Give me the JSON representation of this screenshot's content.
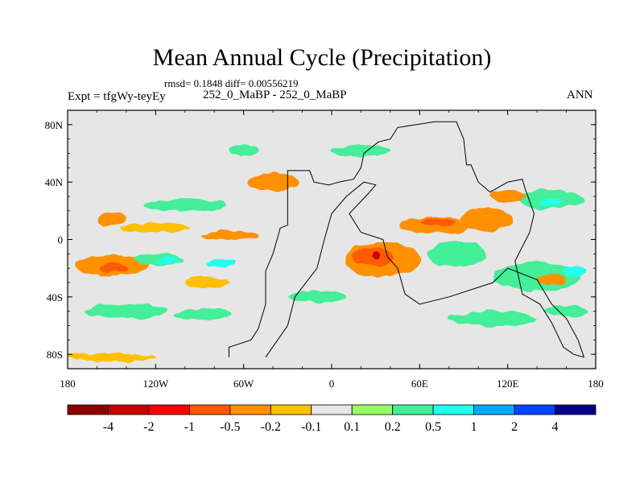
{
  "header": {
    "title": "Mean Annual Cycle (Precipitation)",
    "stats": "rmsd= 0.1848 diff= 0.00556219",
    "expt": "Expt = tfgWy-teyEy",
    "case": "252_0_MaBP - 252_0_MaBP",
    "season": "ANN"
  },
  "chart_data": {
    "type": "heatmap",
    "title": "Mean Annual Cycle (Precipitation)",
    "xlabel": "",
    "ylabel": "",
    "xlim": [
      -180,
      180
    ],
    "ylim": [
      -90,
      90
    ],
    "x_ticks": [
      {
        "value": -180,
        "label": "180"
      },
      {
        "value": -120,
        "label": "120W"
      },
      {
        "value": -60,
        "label": "60W"
      },
      {
        "value": 0,
        "label": "0"
      },
      {
        "value": 60,
        "label": "60E"
      },
      {
        "value": 120,
        "label": "120E"
      },
      {
        "value": 180,
        "label": "180"
      }
    ],
    "y_ticks": [
      {
        "value": 80,
        "label": "80N"
      },
      {
        "value": 40,
        "label": "40N"
      },
      {
        "value": 0,
        "label": "0"
      },
      {
        "value": -40,
        "label": "40S"
      },
      {
        "value": -80,
        "label": "80S"
      }
    ],
    "colorbar": {
      "colors": [
        "#8b0000",
        "#c40000",
        "#ff0000",
        "#ff5a00",
        "#ff9000",
        "#ffc000",
        "#e6e6e6",
        "#99ff66",
        "#44ee99",
        "#22ffee",
        "#00aaff",
        "#0044ff",
        "#000088"
      ],
      "levels": [
        "-4",
        "-2",
        "-1",
        "-0.5",
        "-0.2",
        "-0.1",
        "0.1",
        "0.2",
        "0.5",
        "1",
        "2",
        "4"
      ]
    },
    "blobs": [
      {
        "lon": -150,
        "lat": 14,
        "rlon": 10,
        "rlat": 5,
        "level": "-0.2"
      },
      {
        "lon": -120,
        "lat": 8,
        "rlon": 24,
        "rlat": 3,
        "level": "-0.1"
      },
      {
        "lon": -150,
        "lat": -18,
        "rlon": 25,
        "rlat": 7,
        "level": "-0.2"
      },
      {
        "lon": -148,
        "lat": -20,
        "rlon": 10,
        "rlat": 3,
        "level": "-0.5"
      },
      {
        "lon": -118,
        "lat": -14,
        "rlon": 18,
        "rlat": 4,
        "level": "0.2"
      },
      {
        "lon": -112,
        "lat": -15,
        "rlon": 9,
        "rlat": 2,
        "level": "0.5"
      },
      {
        "lon": -100,
        "lat": 24,
        "rlon": 28,
        "rlat": 4,
        "level": "0.2"
      },
      {
        "lon": -140,
        "lat": -50,
        "rlon": 28,
        "rlat": 5,
        "level": "0.2"
      },
      {
        "lon": -88,
        "lat": -52,
        "rlon": 20,
        "rlat": 4,
        "level": "0.2"
      },
      {
        "lon": -85,
        "lat": -30,
        "rlon": 15,
        "rlat": 4,
        "level": "-0.1"
      },
      {
        "lon": -75,
        "lat": -16,
        "rlon": 10,
        "rlat": 3,
        "level": "0.5"
      },
      {
        "lon": -40,
        "lat": 40,
        "rlon": 18,
        "rlat": 6,
        "level": "-0.2"
      },
      {
        "lon": -60,
        "lat": 62,
        "rlon": 10,
        "rlat": 4,
        "level": "0.2"
      },
      {
        "lon": -70,
        "lat": 3,
        "rlon": 20,
        "rlat": 3,
        "level": "-0.2"
      },
      {
        "lon": 35,
        "lat": -14,
        "rlon": 26,
        "rlat": 12,
        "level": "-0.2"
      },
      {
        "lon": 28,
        "lat": -12,
        "rlon": 14,
        "rlat": 6,
        "level": "-0.5"
      },
      {
        "lon": 30,
        "lat": -11,
        "rlon": 3,
        "rlat": 2,
        "level": "-2"
      },
      {
        "lon": 70,
        "lat": 10,
        "rlon": 24,
        "rlat": 6,
        "level": "-0.2"
      },
      {
        "lon": 72,
        "lat": 12,
        "rlon": 12,
        "rlat": 3,
        "level": "-0.5"
      },
      {
        "lon": 85,
        "lat": -10,
        "rlon": 20,
        "rlat": 9,
        "level": "0.2"
      },
      {
        "lon": 105,
        "lat": 14,
        "rlon": 18,
        "rlat": 8,
        "level": "-0.2"
      },
      {
        "lon": 150,
        "lat": 28,
        "rlon": 22,
        "rlat": 7,
        "level": "0.2"
      },
      {
        "lon": 150,
        "lat": 26,
        "rlon": 8,
        "rlat": 3,
        "level": "0.5"
      },
      {
        "lon": 140,
        "lat": -26,
        "rlon": 30,
        "rlat": 10,
        "level": "0.2"
      },
      {
        "lon": 150,
        "lat": -28,
        "rlon": 10,
        "rlat": 4,
        "level": "-0.2"
      },
      {
        "lon": 165,
        "lat": -22,
        "rlon": 8,
        "rlat": 3,
        "level": "0.5"
      },
      {
        "lon": 110,
        "lat": -55,
        "rlon": 30,
        "rlat": 5,
        "level": "0.2"
      },
      {
        "lon": 160,
        "lat": -50,
        "rlon": 15,
        "rlat": 4,
        "level": "0.2"
      },
      {
        "lon": -150,
        "lat": -82,
        "rlon": 30,
        "rlat": 3,
        "level": "-0.1"
      },
      {
        "lon": 20,
        "lat": 62,
        "rlon": 20,
        "rlat": 4,
        "level": "0.2"
      },
      {
        "lon": 120,
        "lat": 30,
        "rlon": 12,
        "rlat": 4,
        "level": "-0.2"
      },
      {
        "lon": -10,
        "lat": -40,
        "rlon": 20,
        "rlat": 4,
        "level": "0.2"
      }
    ],
    "outline": [
      [
        -70,
        -82
      ],
      [
        -70,
        -75
      ],
      [
        -55,
        -70
      ],
      [
        -50,
        -62
      ],
      [
        -45,
        -45
      ],
      [
        -45,
        -22
      ],
      [
        -40,
        -10
      ],
      [
        -35,
        8
      ],
      [
        -30,
        10
      ],
      [
        -30,
        48
      ],
      [
        -15,
        48
      ],
      [
        -12,
        40
      ],
      [
        -2,
        38
      ],
      [
        5,
        40
      ],
      [
        15,
        42
      ],
      [
        20,
        50
      ],
      [
        22,
        60
      ],
      [
        32,
        68
      ],
      [
        40,
        70
      ],
      [
        45,
        78
      ],
      [
        70,
        82
      ],
      [
        85,
        82
      ],
      [
        90,
        70
      ],
      [
        92,
        52
      ],
      [
        95,
        52
      ],
      [
        100,
        40
      ],
      [
        108,
        33
      ],
      [
        120,
        40
      ],
      [
        130,
        42
      ],
      [
        132,
        35
      ],
      [
        138,
        18
      ],
      [
        135,
        5
      ],
      [
        130,
        -5
      ],
      [
        125,
        -15
      ],
      [
        130,
        -38
      ],
      [
        142,
        -45
      ],
      [
        150,
        -58
      ],
      [
        158,
        -75
      ],
      [
        165,
        -80
      ],
      [
        172,
        -82
      ],
      [
        168,
        -70
      ],
      [
        160,
        -55
      ],
      [
        150,
        -45
      ],
      [
        140,
        -28
      ],
      [
        120,
        -20
      ],
      [
        110,
        -30
      ],
      [
        80,
        -40
      ],
      [
        60,
        -45
      ],
      [
        50,
        -38
      ],
      [
        45,
        -20
      ],
      [
        38,
        -12
      ],
      [
        35,
        0
      ],
      [
        20,
        5
      ],
      [
        12,
        18
      ],
      [
        25,
        32
      ],
      [
        30,
        38
      ],
      [
        22,
        40
      ],
      [
        10,
        30
      ],
      [
        0,
        18
      ],
      [
        -5,
        0
      ],
      [
        -10,
        -20
      ],
      [
        -25,
        -40
      ],
      [
        -30,
        -60
      ],
      [
        -45,
        -82
      ]
    ]
  }
}
